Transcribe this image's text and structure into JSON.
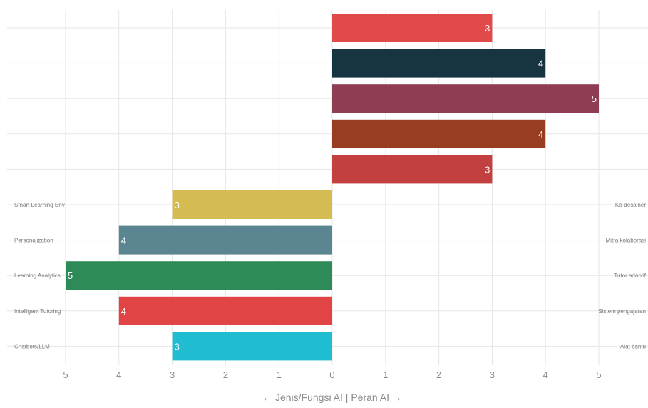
{
  "chart_data": {
    "type": "bar",
    "orientation": "horizontal-diverging",
    "xlabel": "← Jenis/Fungsi AI | Peran AI →",
    "xlim": [
      -5,
      5
    ],
    "x_tick_labels": [
      "5",
      "4",
      "3",
      "2",
      "1",
      "0",
      "1",
      "2",
      "3",
      "4",
      "5"
    ],
    "grid": true,
    "right_series": {
      "bars": [
        {
          "label": "Ko-desainer",
          "value": 3,
          "color": "#e04a4a"
        },
        {
          "label": "Mitra kolaborasi",
          "value": 4,
          "color": "#173540"
        },
        {
          "label": "Tutor adaptif",
          "value": 5,
          "color": "#8f3d52"
        },
        {
          "label": "Sistem pengajaran",
          "value": 4,
          "color": "#983d22"
        },
        {
          "label": "Alat bantu",
          "value": 3,
          "color": "#c2403f"
        }
      ]
    },
    "left_series": {
      "bars": [
        {
          "label": "Smart Learning Env",
          "value": 3,
          "color": "#d4bb52"
        },
        {
          "label": "Personalization",
          "value": 4,
          "color": "#5b8590"
        },
        {
          "label": "Learning Analytics",
          "value": 5,
          "color": "#2e8b57"
        },
        {
          "label": "Intelligent Tutoring",
          "value": 4,
          "color": "#e04444"
        },
        {
          "label": "Chatbots/LLM",
          "value": 3,
          "color": "#20bcd2"
        }
      ]
    },
    "right_category_labels": [
      "Ko-desainer",
      "Mitra kolaborasi",
      "Tutor adaptif",
      "Sistem pengajaran",
      "Alat bantu"
    ],
    "left_category_labels": [
      "Smart Learning Env",
      "Personalization",
      "Learning Analytics",
      "Intelligent Tutoring",
      "Chatbots/LLM"
    ],
    "value_labels_right": [
      "3",
      "4",
      "5",
      "4",
      "3"
    ],
    "value_labels_left": [
      "3",
      "4",
      "5",
      "4",
      "3"
    ]
  }
}
